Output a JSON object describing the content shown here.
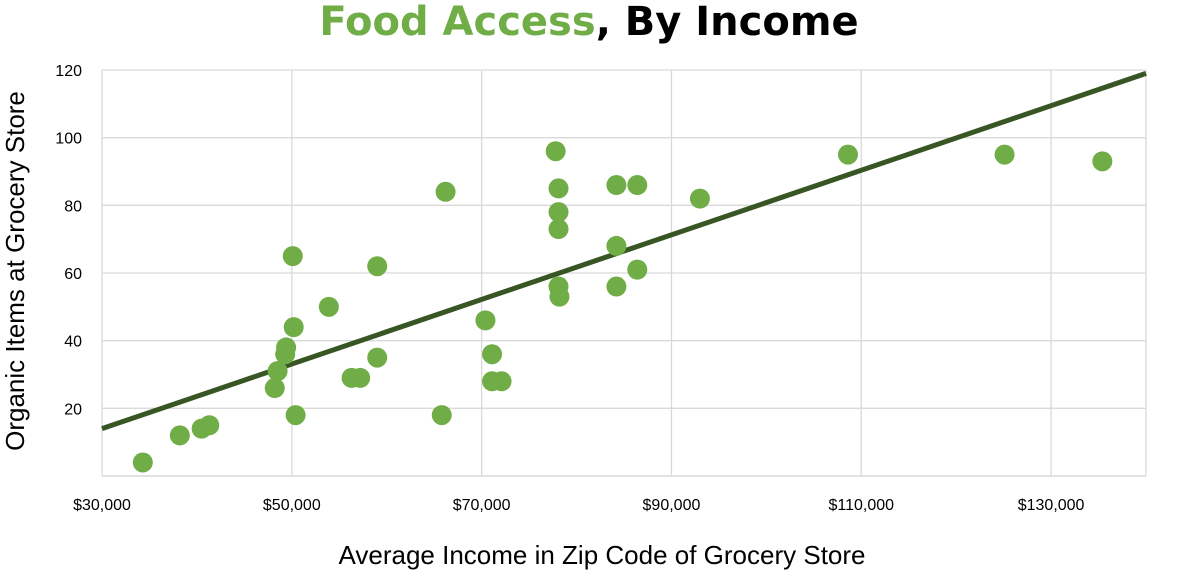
{
  "title": {
    "highlight": "Food Access",
    "rest": ", By Income"
  },
  "chart_data": {
    "type": "scatter",
    "title": "Food Access, By Income",
    "xlabel": "Average Income in Zip Code of Grocery Store",
    "ylabel": "Organic Items at Grocery Store",
    "xlim": [
      30000,
      140000
    ],
    "ylim": [
      0,
      120
    ],
    "x_ticks": [
      30000,
      50000,
      70000,
      90000,
      110000,
      130000
    ],
    "x_tick_labels": [
      "$30,000",
      "$50,000",
      "$70,000",
      "$90,000",
      "$110,000",
      "$130,000"
    ],
    "y_ticks": [
      20,
      40,
      60,
      80,
      100,
      120
    ],
    "y_tick_labels": [
      "20",
      "40",
      "60",
      "80",
      "100",
      "120"
    ],
    "grid": true,
    "colors": {
      "points": "#70ad47",
      "trendline": "#375623",
      "grid": "#d9d9d9",
      "title_highlight": "#70ad47"
    },
    "series": [
      {
        "points": [
          [
            34300,
            4
          ],
          [
            38200,
            12
          ],
          [
            40500,
            14
          ],
          [
            41300,
            15
          ],
          [
            48200,
            26
          ],
          [
            48500,
            31
          ],
          [
            49300,
            36
          ],
          [
            49400,
            38
          ],
          [
            50100,
            65
          ],
          [
            50200,
            44
          ],
          [
            50400,
            18
          ],
          [
            53900,
            50
          ],
          [
            56300,
            29
          ],
          [
            57200,
            29
          ],
          [
            59000,
            62
          ],
          [
            59000,
            35
          ],
          [
            65800,
            18
          ],
          [
            66200,
            84
          ],
          [
            70400,
            46
          ],
          [
            71100,
            36
          ],
          [
            71100,
            28
          ],
          [
            72100,
            28
          ],
          [
            77800,
            96
          ],
          [
            78100,
            85
          ],
          [
            78100,
            78
          ],
          [
            78100,
            73
          ],
          [
            78100,
            56
          ],
          [
            78200,
            53
          ],
          [
            84200,
            86
          ],
          [
            84200,
            68
          ],
          [
            84200,
            56
          ],
          [
            86400,
            86
          ],
          [
            86400,
            61
          ],
          [
            93000,
            82
          ],
          [
            108600,
            95
          ],
          [
            125100,
            95
          ],
          [
            135400,
            93
          ]
        ]
      }
    ],
    "trendline": {
      "x": [
        30000,
        140000
      ],
      "y": [
        14,
        119
      ]
    }
  }
}
